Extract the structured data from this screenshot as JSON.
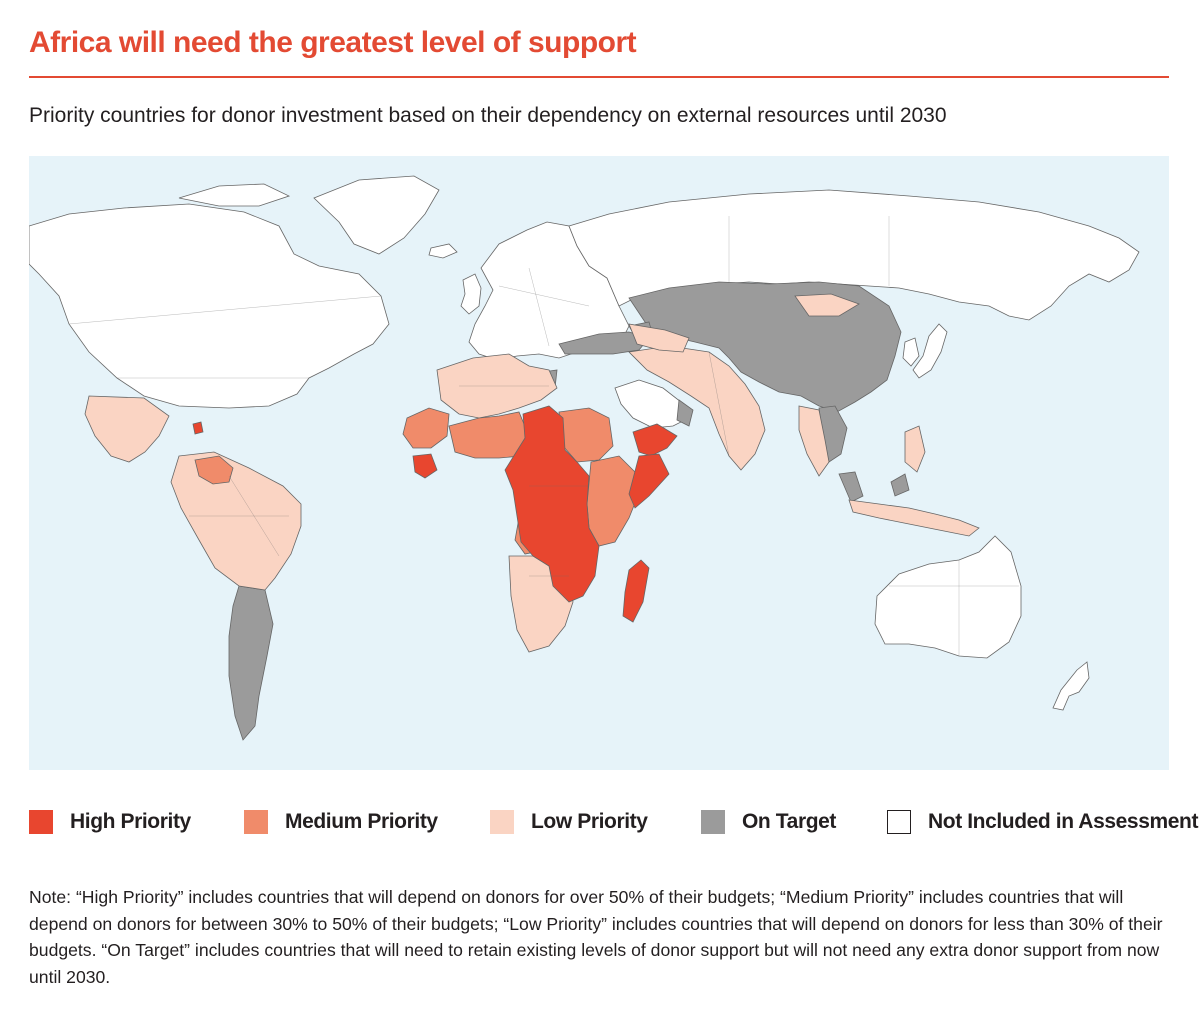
{
  "title": "Africa will need the greatest level of support",
  "subtitle": "Priority countries for donor investment based on their dependency on external resources until 2030",
  "colors": {
    "accent": "#e34a33",
    "high": "#e8462f",
    "medium": "#f08b6a",
    "low": "#fad4c3",
    "on_target": "#9b9b9b",
    "not_included": "#ffffff",
    "ocean": "#e6f3f9",
    "border": "#666666"
  },
  "legend": [
    {
      "label": "High Priority",
      "color": "#e8462f",
      "icon": "high-priority-swatch"
    },
    {
      "label": "Medium Priority",
      "color": "#f08b6a",
      "icon": "medium-priority-swatch"
    },
    {
      "label": "Low Priority",
      "color": "#fad4c3",
      "icon": "low-priority-swatch"
    },
    {
      "label": "On Target",
      "color": "#9b9b9b",
      "icon": "on-target-swatch"
    },
    {
      "label": "Not Included in Assessment",
      "color": "#ffffff",
      "icon": "not-included-swatch"
    }
  ],
  "note": "Note: “High Priority” includes countries that will depend on donors for over 50% of their budgets; “Medium Priority” includes countries that will depend on donors for between 30% to 50% of their budgets; “Low Priority” includes countries that will depend on donors for less than 30% of their budgets. “On Target” includes countries that will need to retain existing levels of donor support but will not need any extra donor support from now until 2030."
}
